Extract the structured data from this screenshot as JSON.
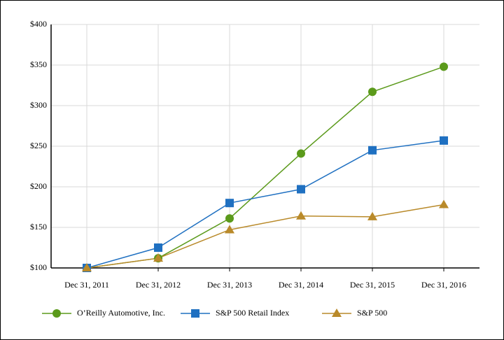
{
  "chart_data": {
    "type": "line",
    "categories": [
      "Dec 31, 2011",
      "Dec 31, 2012",
      "Dec 31, 2013",
      "Dec 31, 2014",
      "Dec 31, 2015",
      "Dec 31, 2016"
    ],
    "series": [
      {
        "name": "O’Reilly Automotive, Inc.",
        "color": "#5b9a1b",
        "marker": "circle",
        "values": [
          100,
          112,
          161,
          241,
          317,
          348
        ]
      },
      {
        "name": "S&P 500 Retail Index",
        "color": "#1f70c1",
        "marker": "square",
        "values": [
          100,
          125,
          180,
          197,
          245,
          257
        ]
      },
      {
        "name": "S&P 500",
        "color": "#b98a2a",
        "marker": "triangle",
        "values": [
          100,
          112,
          147,
          164,
          163,
          178
        ]
      }
    ],
    "ylim": [
      100,
      400
    ],
    "yticks": [
      {
        "value": 100,
        "label": "$100"
      },
      {
        "value": 150,
        "label": "$150"
      },
      {
        "value": 200,
        "label": "$200"
      },
      {
        "value": 250,
        "label": "$250"
      },
      {
        "value": 300,
        "label": "$300"
      },
      {
        "value": 350,
        "label": "$350"
      },
      {
        "value": 400,
        "label": "$400"
      }
    ],
    "grid": true
  }
}
